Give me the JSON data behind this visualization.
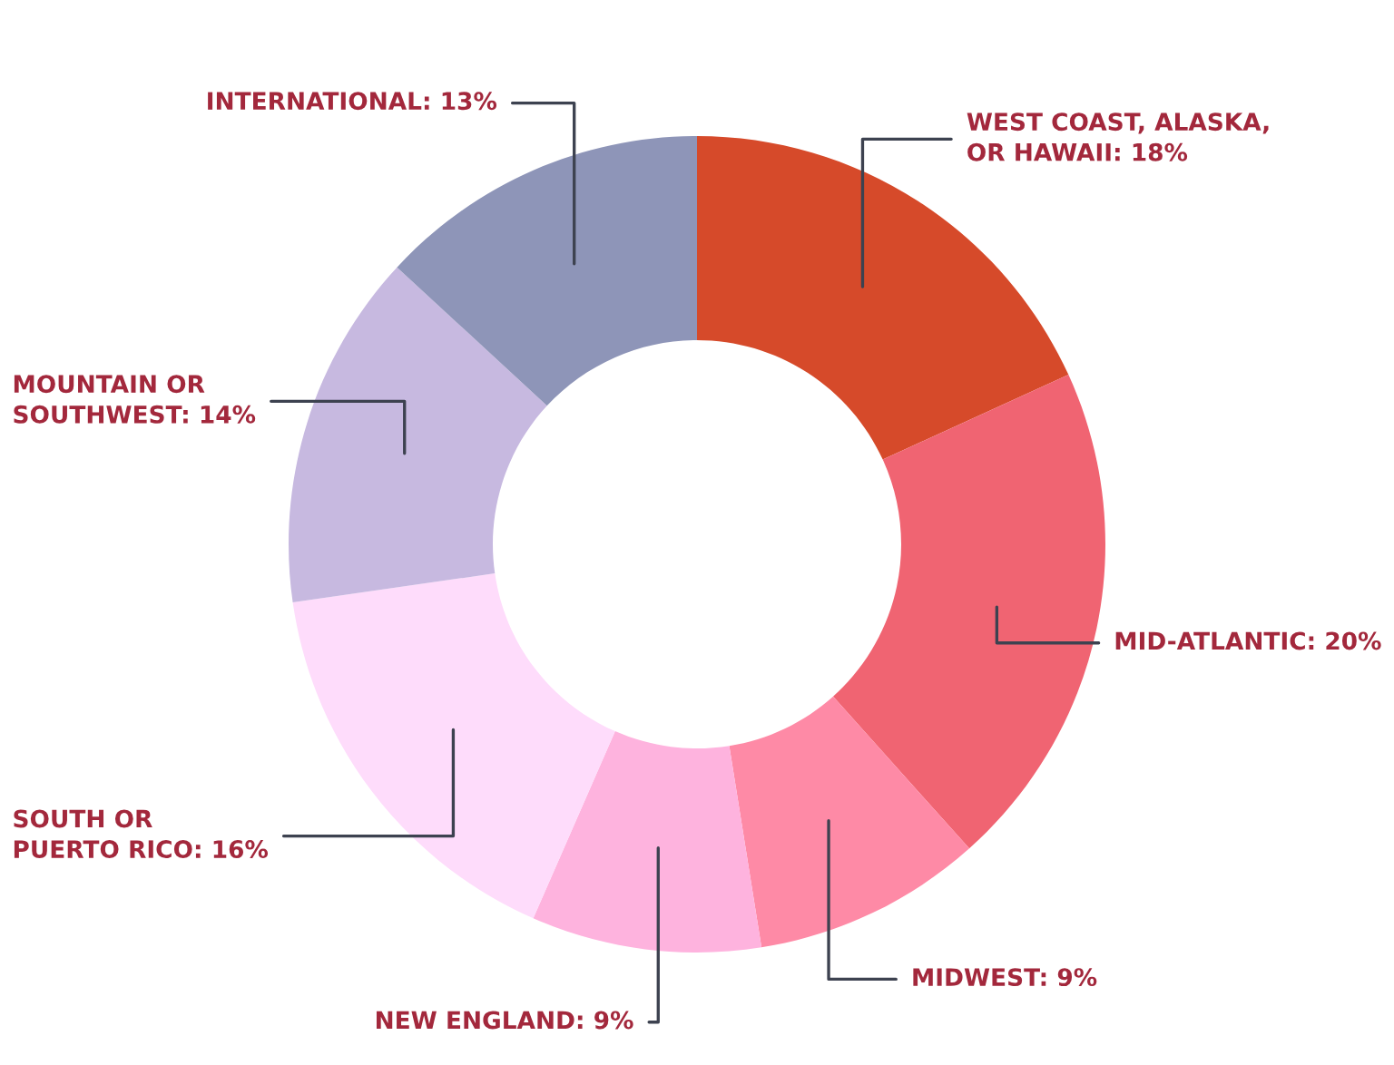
{
  "chart_data": {
    "type": "donut",
    "categories": [
      "WEST COAST, ALASKA,\nOR HAWAII",
      "MID-ATLANTIC",
      "MIDWEST",
      "NEW ENGLAND",
      "SOUTH OR\nPUERTO RICO",
      "MOUNTAIN OR\nSOUTHWEST",
      "INTERNATIONAL"
    ],
    "values": [
      18,
      20,
      9,
      9,
      16,
      14,
      13
    ],
    "value_labels": [
      "18%",
      "20%",
      "9%",
      "9%",
      "16%",
      "14%",
      "13%"
    ],
    "colors": [
      "#d64a2a",
      "#f06472",
      "#fe8aa6",
      "#feb3de",
      "#fedcfb",
      "#c7b9e0",
      "#8e95b8"
    ],
    "legend": false
  }
}
